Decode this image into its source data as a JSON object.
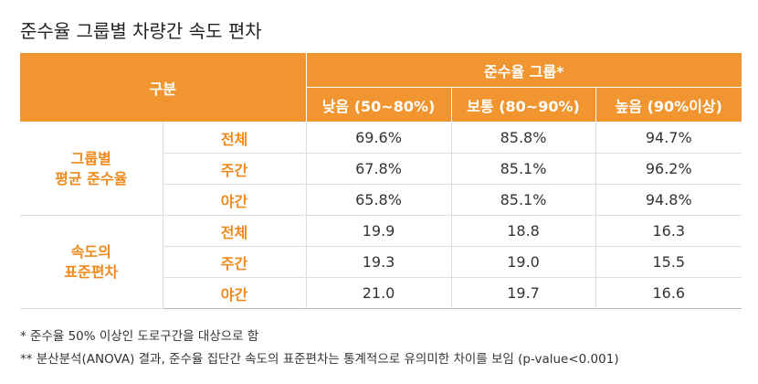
{
  "title": "준수율 그룹별 차량간 속도 편차",
  "table": {
    "header": {
      "category": "구분",
      "group": "준수율 그룹*",
      "columns": [
        "낮음 (50~80%)",
        "보통 (80~90%)",
        "높음 (90%이상)"
      ]
    },
    "sections": [
      {
        "label_lines": [
          "그룹별",
          "평균 준수율"
        ],
        "rows": [
          {
            "label": "전체",
            "cells": [
              "69.6%",
              "85.8%",
              "94.7%"
            ]
          },
          {
            "label": "주간",
            "cells": [
              "67.8%",
              "85.1%",
              "96.2%"
            ]
          },
          {
            "label": "야간",
            "cells": [
              "65.8%",
              "85.1%",
              "94.8%"
            ]
          }
        ]
      },
      {
        "label_lines": [
          "속도의",
          "표준편차"
        ],
        "rows": [
          {
            "label": "전체",
            "cells": [
              "19.9",
              "18.8",
              "16.3"
            ]
          },
          {
            "label": "주간",
            "cells": [
              "19.3",
              "19.0",
              "15.5"
            ]
          },
          {
            "label": "야간",
            "cells": [
              "21.0",
              "19.7",
              "16.6"
            ]
          }
        ]
      }
    ]
  },
  "notes": [
    "* 준수율 50% 이상인 도로구간을 대상으로 함",
    "** 분산분석(ANOVA) 결과, 준수율 집단간 속도의 표준편차는 통계적으로 유의미한 차이를 보임 (p-value<0.001)"
  ]
}
